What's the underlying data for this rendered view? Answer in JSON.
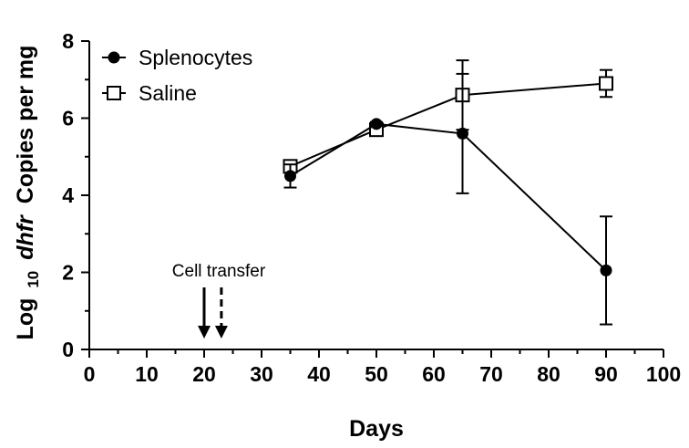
{
  "chart_data": {
    "type": "line",
    "title": "",
    "xlabel": "Days",
    "ylabel": {
      "prefix": "Log",
      "subscript": "10",
      "italic": "dhfr",
      "suffix": "Copies per mg"
    },
    "xlim": [
      0,
      100
    ],
    "ylim": [
      0,
      8
    ],
    "xticks": [
      "0",
      "10",
      "20",
      "30",
      "40",
      "50",
      "60",
      "70",
      "80",
      "90",
      "100"
    ],
    "yticks": [
      "0",
      "2",
      "4",
      "6",
      "8"
    ],
    "grid": false,
    "legend_position": "top-left",
    "series": [
      {
        "name": "Splenocytes",
        "marker": "filled-circle",
        "x": [
          35,
          50,
          65,
          90
        ],
        "y": [
          4.5,
          5.85,
          5.6,
          2.05
        ],
        "error": [
          0.3,
          0.05,
          1.55,
          1.4
        ]
      },
      {
        "name": "Saline",
        "marker": "open-square",
        "x": [
          35,
          50,
          65,
          90
        ],
        "y": [
          4.75,
          5.7,
          6.6,
          6.9
        ],
        "error": [
          0.1,
          0.1,
          0.9,
          0.35
        ]
      }
    ],
    "annotations": [
      {
        "text": "Cell transfer",
        "arrows": [
          {
            "x": 20,
            "style": "solid"
          },
          {
            "x": 23,
            "style": "dashed"
          }
        ]
      }
    ]
  }
}
